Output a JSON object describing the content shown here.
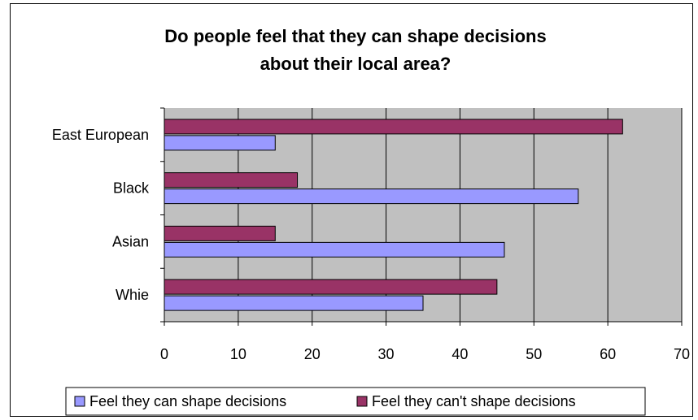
{
  "chart_data": {
    "type": "bar",
    "orientation": "horizontal",
    "title": "Do people feel that they can shape decisions about their local area?",
    "title_lines": [
      "Do people feel that they can shape decisions",
      "about their local area?"
    ],
    "categories": [
      "Whie",
      "Asian",
      "Black",
      "East European"
    ],
    "series": [
      {
        "name": "Feel they can shape decisions",
        "color": "#9999ff",
        "values": [
          35,
          46,
          56,
          15
        ]
      },
      {
        "name": "Feel they can't shape decisions",
        "color": "#993366",
        "values": [
          45,
          15,
          18,
          62
        ]
      }
    ],
    "xlim": [
      0,
      70
    ],
    "xticks": [
      0,
      10,
      20,
      30,
      40,
      50,
      60,
      70
    ],
    "xlabel": "",
    "ylabel": "",
    "grid": true,
    "plot_background": "#c0c0c0",
    "legend_position": "bottom"
  }
}
